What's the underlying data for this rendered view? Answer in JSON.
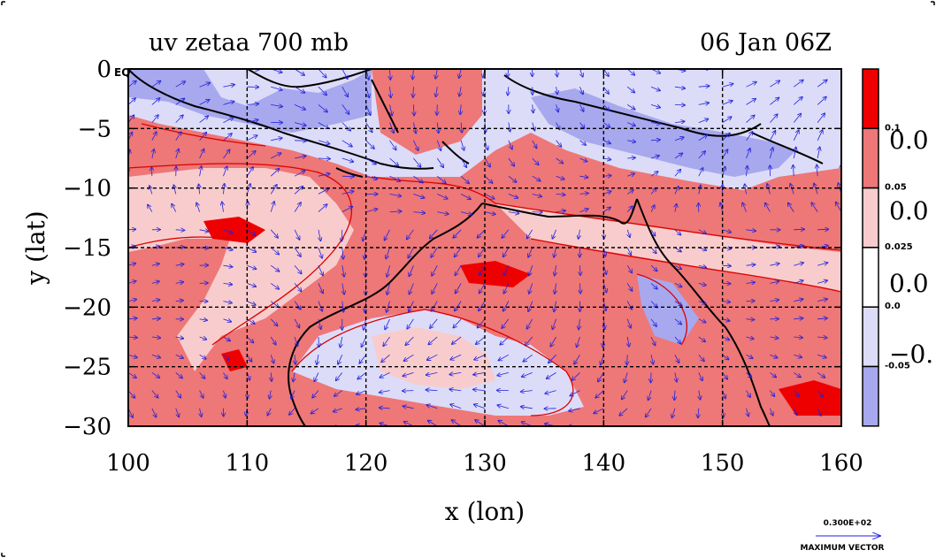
{
  "colors": {
    "strong_positive": "#ee0000",
    "positive": "#ee7777",
    "weak_positive": "#f8cccc",
    "neutral": "#ffffff",
    "weak_negative": "#dcdcf8",
    "negative": "#a8a8ee",
    "vector": "#2222dd",
    "coast": "#000000",
    "contour_line": "#dd0000"
  },
  "chart_data": {
    "type": "heatmap",
    "title": "uv zetaa 700 mb",
    "subtitle": "06 Jan 06Z",
    "xlabel": "x (lon)",
    "ylabel": "y (lat)",
    "xlim": [
      100,
      160
    ],
    "ylim": [
      -30,
      0
    ],
    "x_ticks": [
      100,
      110,
      120,
      130,
      140,
      150,
      160
    ],
    "x_tick_labels": [
      "100",
      "110",
      "120",
      "130",
      "140",
      "150",
      "160"
    ],
    "y_ticks": [
      0,
      -5,
      -10,
      -15,
      -20,
      -25,
      -30
    ],
    "y_tick_labels": [
      "0",
      "−5",
      "−10",
      "−15",
      "−20",
      "−25",
      "−30"
    ],
    "y_top_suffix": "EQ",
    "grid_lon": [
      110,
      120,
      130,
      140,
      150
    ],
    "grid_lat": [
      -5,
      -10,
      -15,
      -20,
      -25
    ],
    "colorbar": {
      "levels": [
        "0.1",
        "0.05",
        "0.025",
        "0.0",
        "-0.05"
      ],
      "bins": [
        "strong_positive",
        "positive",
        "weak_positive",
        "neutral",
        "weak_negative",
        "negative"
      ],
      "big_labels": [
        "0.0",
        "0.0",
        "0.0",
        "−0."
      ]
    },
    "vector_key": {
      "value": "0.300E+02",
      "label": "MAXIMUM VECTOR"
    }
  }
}
